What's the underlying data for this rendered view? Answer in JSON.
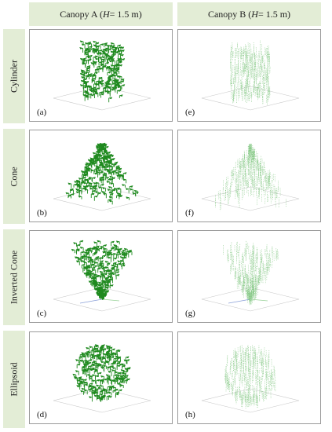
{
  "column_headers": [
    {
      "prefix": "Canopy A  (",
      "symbol": "H",
      "suffix": " = 1.5 m)"
    },
    {
      "prefix": "Canopy B  (",
      "symbol": "H",
      "suffix": " = 1.5 m)"
    }
  ],
  "row_headers": [
    "Cylinder",
    "Cone",
    "Inverted Cone",
    "Ellipsoid"
  ],
  "panels": [
    {
      "label": "(a)",
      "canopy": "A",
      "shape": "cylinder"
    },
    {
      "label": "(e)",
      "canopy": "B",
      "shape": "cylinder"
    },
    {
      "label": "(b)",
      "canopy": "A",
      "shape": "cone"
    },
    {
      "label": "(f)",
      "canopy": "B",
      "shape": "cone"
    },
    {
      "label": "(c)",
      "canopy": "A",
      "shape": "inverted-cone"
    },
    {
      "label": "(g)",
      "canopy": "B",
      "shape": "inverted-cone"
    },
    {
      "label": "(d)",
      "canopy": "A",
      "shape": "ellipsoid"
    },
    {
      "label": "(h)",
      "canopy": "B",
      "shape": "ellipsoid"
    }
  ],
  "colors": {
    "header_background": "#e3edd6",
    "canopy_a_leaf": "#1f8a1f",
    "canopy_b_leaf": "#7cc47c",
    "ground_grid": "#c8c8c8"
  }
}
